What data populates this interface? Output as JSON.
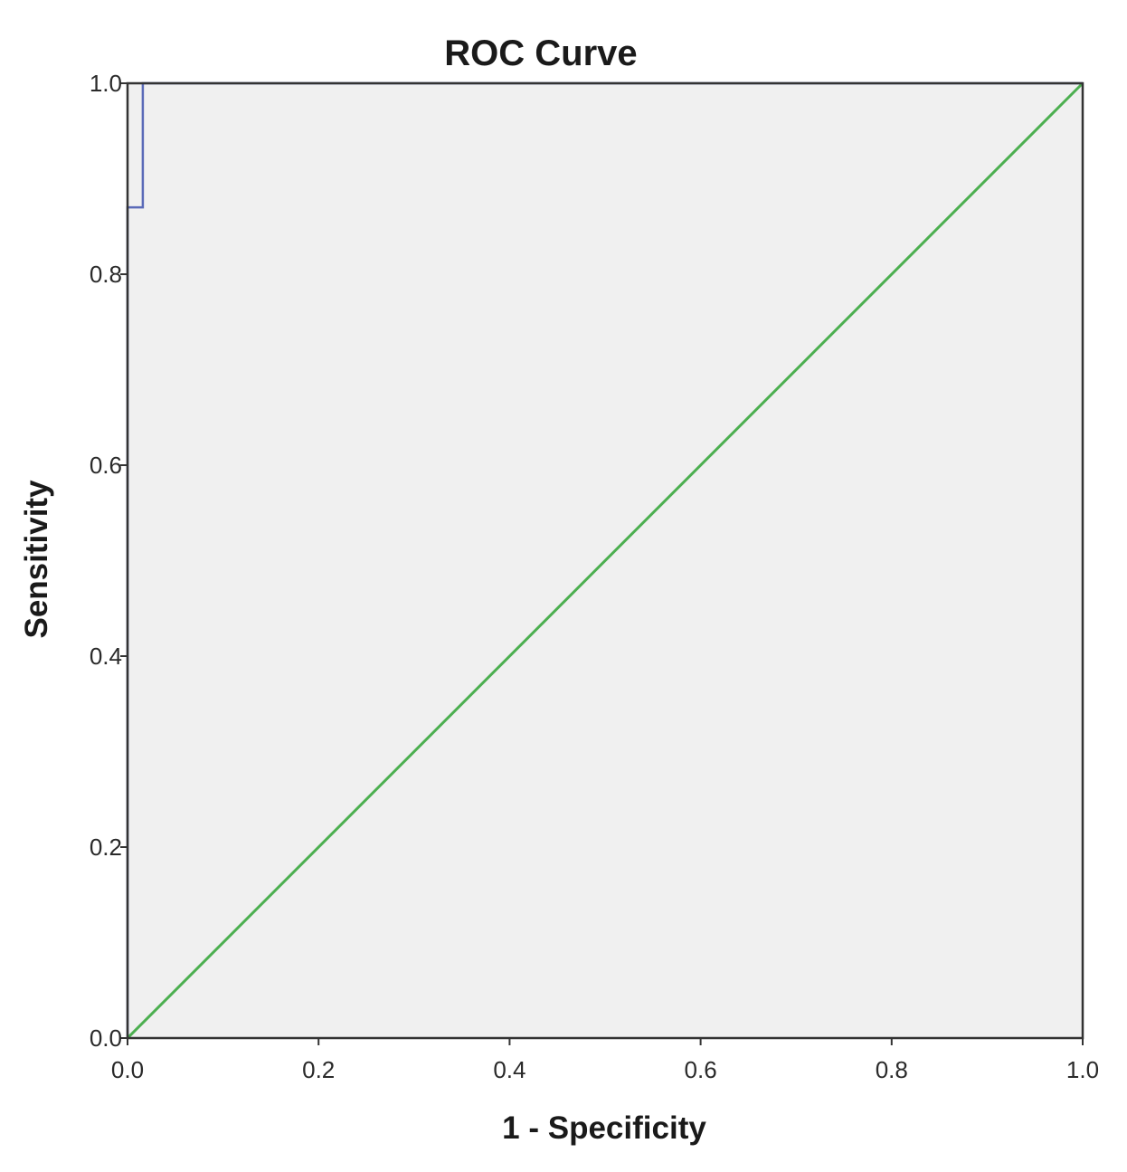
{
  "chart_data": {
    "type": "line",
    "title": "ROC Curve",
    "xlabel": "1 - Specificity",
    "ylabel": "Sensitivity",
    "xlim": [
      0.0,
      1.0
    ],
    "ylim": [
      0.0,
      1.0
    ],
    "x_ticks": [
      "0.0",
      "0.2",
      "0.4",
      "0.6",
      "0.8",
      "1.0"
    ],
    "y_ticks": [
      "0.0",
      "0.2",
      "0.4",
      "0.6",
      "0.8",
      "1.0"
    ],
    "grid": false,
    "legend": "none",
    "series": [
      {
        "points": [
          [
            0.0,
            0.0
          ],
          [
            0.0,
            0.87
          ],
          [
            0.016,
            0.87
          ],
          [
            0.016,
            1.0
          ],
          [
            1.0,
            1.0
          ]
        ],
        "color": "#5a6ab8"
      },
      {
        "points": [
          [
            0.0,
            0.0
          ],
          [
            1.0,
            1.0
          ]
        ],
        "color": "#4caf50"
      }
    ],
    "plot_background": "#f0f0f0",
    "frame_color": "#333333"
  }
}
